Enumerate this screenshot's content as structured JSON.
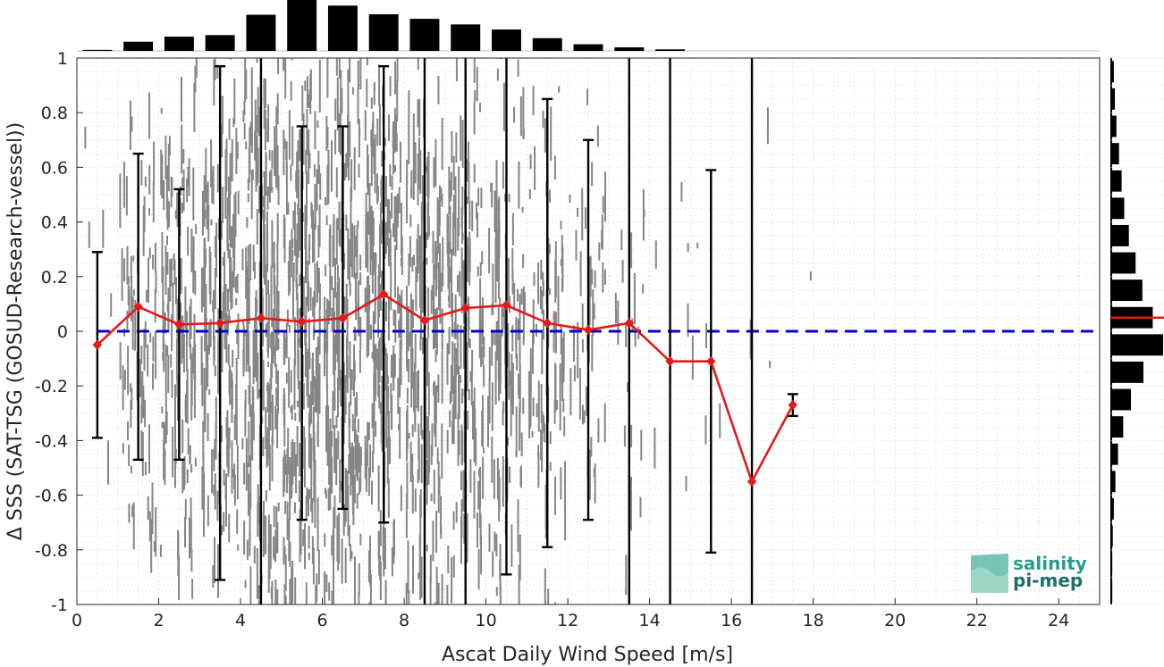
{
  "chart_data": {
    "type": "scatter",
    "xlabel": "Ascat Daily Wind Speed [m/s]",
    "ylabel": "Δ SSS (SAT-TSG (GOSUD-Research-vessel))",
    "xlim": [
      0,
      25
    ],
    "ylim": [
      -1,
      1
    ],
    "xticks": [
      "0",
      "2",
      "4",
      "6",
      "8",
      "10",
      "12",
      "14",
      "16",
      "18",
      "20",
      "22",
      "24"
    ],
    "yticks": [
      "-1",
      "-0.8",
      "-0.6",
      "-0.4",
      "-0.2",
      "0",
      "0.2",
      "0.4",
      "0.6",
      "0.8",
      "1"
    ],
    "grid": true,
    "zero_line": {
      "y": 0,
      "color": "#0000d6",
      "style": "dashed"
    },
    "bin_stats": {
      "color": "#e31a1c",
      "x": [
        0.5,
        1.5,
        2.5,
        3.5,
        4.5,
        5.5,
        6.5,
        7.5,
        8.5,
        9.5,
        10.5,
        11.5,
        12.5,
        13.5,
        14.5,
        15.5,
        16.5,
        17.5
      ],
      "mean": [
        -0.05,
        0.09,
        0.025,
        0.03,
        0.048,
        0.035,
        0.048,
        0.135,
        0.04,
        0.085,
        0.095,
        0.03,
        0.005,
        0.03,
        -0.11,
        -0.11,
        -0.55,
        -0.27
      ],
      "lower": [
        -0.39,
        -0.47,
        -0.47,
        -0.91,
        -1.0,
        -0.69,
        -0.65,
        -0.7,
        -1.0,
        -1.0,
        -0.89,
        -0.79,
        -0.69,
        -1.0,
        -1.0,
        -0.81,
        -1.0,
        -0.31
      ],
      "upper": [
        0.29,
        0.65,
        0.52,
        0.97,
        1.0,
        0.75,
        0.75,
        0.97,
        1.0,
        1.0,
        1.0,
        0.85,
        0.7,
        1.0,
        1.0,
        0.59,
        1.0,
        -0.23
      ],
      "upper_cap": [
        true,
        true,
        true,
        true,
        false,
        true,
        true,
        true,
        false,
        false,
        false,
        true,
        true,
        false,
        false,
        true,
        false,
        true
      ],
      "lower_cap": [
        true,
        true,
        true,
        true,
        false,
        true,
        true,
        true,
        false,
        false,
        true,
        true,
        true,
        false,
        false,
        true,
        false,
        true
      ]
    },
    "scatter_color": "#808080",
    "scatter_density": [
      0.02,
      0.3,
      0.55,
      0.7,
      0.9,
      1.0,
      0.95,
      0.85,
      0.75,
      0.65,
      0.5,
      0.35,
      0.18,
      0.08,
      0.03,
      0.02,
      0.01,
      0.005
    ],
    "top_histogram": {
      "bins_x": [
        0.5,
        1.5,
        2.5,
        3.5,
        4.5,
        5.5,
        6.5,
        7.5,
        8.5,
        9.5,
        10.5,
        11.5,
        12.5,
        13.5,
        14.5,
        15.5,
        16.5,
        17.5
      ],
      "counts": [
        0.02,
        0.18,
        0.28,
        0.31,
        0.71,
        1.0,
        0.89,
        0.72,
        0.63,
        0.52,
        0.42,
        0.25,
        0.13,
        0.07,
        0.03,
        0.0,
        0.0,
        0.0
      ]
    },
    "right_histogram": {
      "bins_y": [
        -0.95,
        -0.85,
        -0.75,
        -0.65,
        -0.55,
        -0.45,
        -0.35,
        -0.25,
        -0.15,
        -0.05,
        0.05,
        0.15,
        0.25,
        0.35,
        0.45,
        0.55,
        0.65,
        0.75,
        0.85,
        0.95
      ],
      "counts": [
        0.02,
        0.02,
        0.03,
        0.05,
        0.08,
        0.13,
        0.23,
        0.38,
        0.62,
        1.0,
        0.8,
        0.6,
        0.47,
        0.34,
        0.25,
        0.2,
        0.15,
        0.1,
        0.07,
        0.05
      ],
      "mean_line_y": 0.05,
      "mean_line_color": "#e31a1c"
    }
  },
  "logo": {
    "line1": "salinity",
    "line2": "pi-mep",
    "color": "#2a9d8f"
  }
}
